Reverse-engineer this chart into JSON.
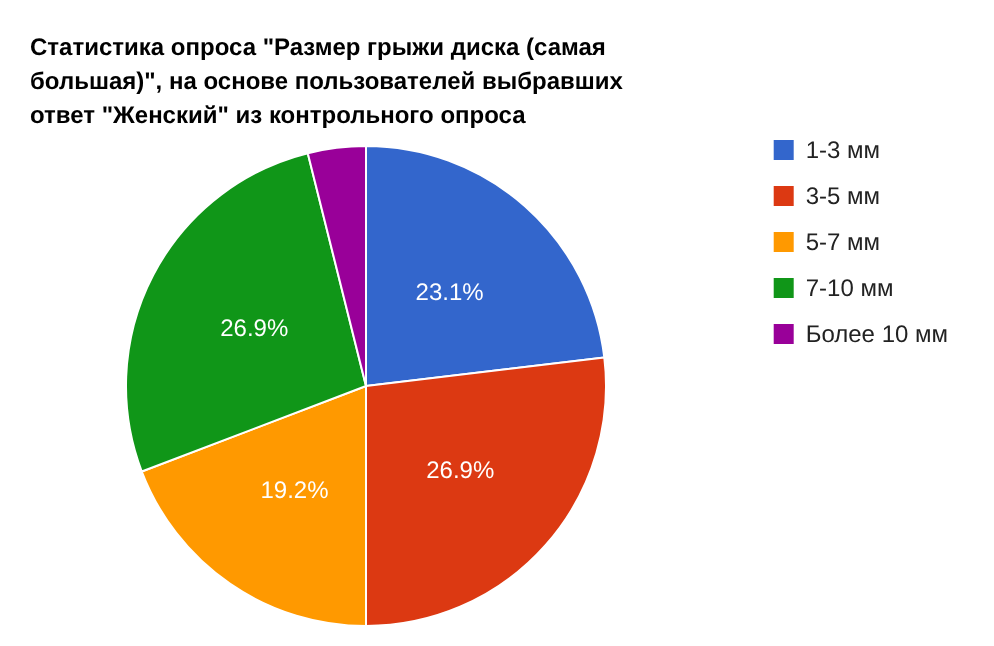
{
  "chart_data": {
    "type": "pie",
    "title": "Статистика опроса \"Размер грыжи диска (самая большая)\", на основе пользователей выбравших ответ \"Женский\" из контрольного опроса",
    "categories": [
      "1-3 мм",
      "3-5 мм",
      "5-7 мм",
      "7-10 мм",
      "Более 10 мм"
    ],
    "values": [
      23.1,
      26.9,
      19.2,
      26.9,
      3.9
    ],
    "colors": [
      "#3366cc",
      "#dc3912",
      "#ff9900",
      "#109618",
      "#990099"
    ],
    "value_labels": [
      "23.1%",
      "26.9%",
      "19.2%",
      "26.9%",
      null
    ],
    "legend": "right"
  }
}
